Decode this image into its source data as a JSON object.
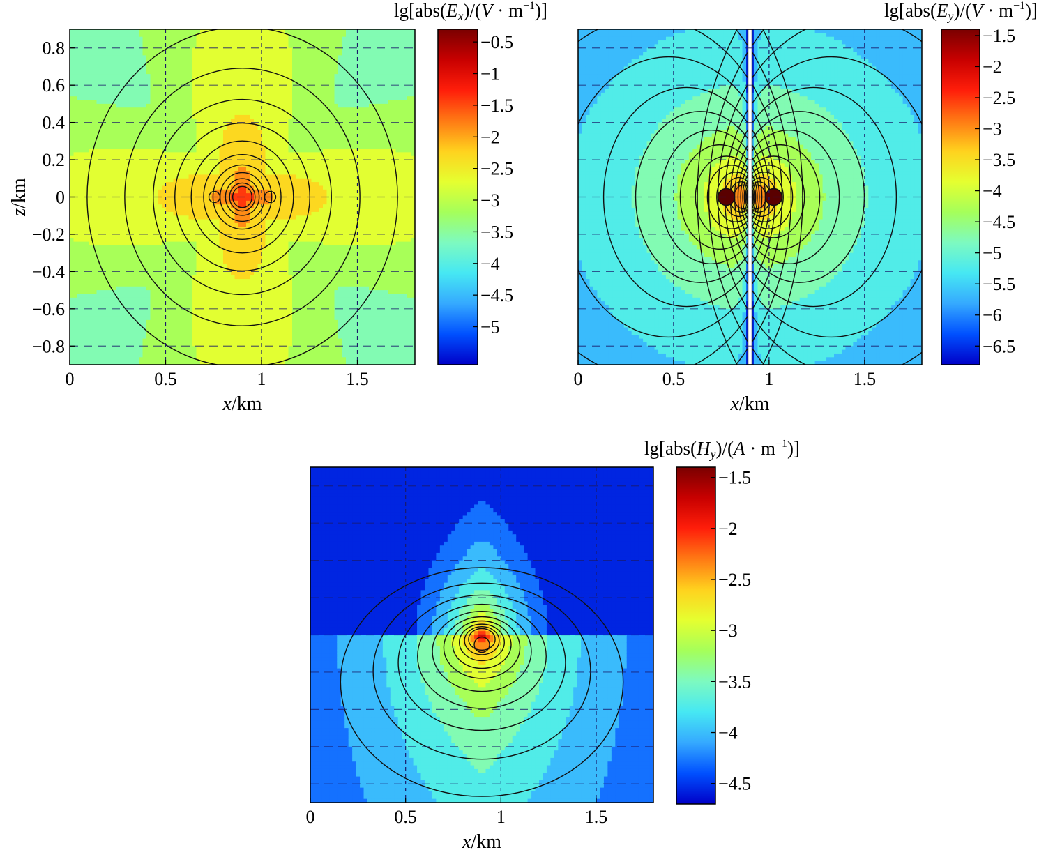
{
  "colormap": [
    "#0000c8",
    "#0050ff",
    "#35a9ff",
    "#46e8f3",
    "#7dfac0",
    "#a5ff5a",
    "#e5ff30",
    "#ffd21e",
    "#ff7a14",
    "#ff1e0a",
    "#c80000",
    "#7a0000"
  ],
  "chart_data": [
    {
      "id": "ex",
      "type": "heatmap",
      "title_prefix": "lg[abs(",
      "title_field": "E",
      "title_sub": "x",
      "title_mid": ")/(",
      "title_unit": "V",
      "title_dot": " · m",
      "title_sup": "−1",
      "title_suffix": ")]",
      "xlabel_var": "x",
      "xlabel_unit": "/km",
      "ylabel_var": "z",
      "ylabel_unit": "/km",
      "xlim": [
        0,
        1.8
      ],
      "ylim": [
        -0.9,
        0.9
      ],
      "xticks": [
        0,
        0.5,
        1,
        1.5
      ],
      "xtick_labels": [
        "0",
        "0.5",
        "1",
        "1.5"
      ],
      "yticks": [
        0.8,
        0.6,
        0.4,
        0.2,
        0,
        -0.2,
        -0.4,
        -0.6,
        -0.8
      ],
      "ytick_labels": [
        "0.8",
        "0.6",
        "0.4",
        "0.2",
        "0",
        "-0.2",
        "-0.4",
        "-0.6",
        "-0.8"
      ],
      "colorbar_range": [
        -5.6,
        -0.3
      ],
      "colorbar_ticks": [
        -0.5,
        -1,
        -1.5,
        -2,
        -2.5,
        -3,
        -3.5,
        -4,
        -4.5,
        -5
      ],
      "colorbar_tick_labels": [
        "-0.5",
        "-1",
        "-1.5",
        "-2",
        "-2.5",
        "-3",
        "-3.5",
        "-4",
        "-4.5",
        "-5"
      ],
      "source_x": 0.9,
      "source_z": 0
    },
    {
      "id": "ey",
      "type": "heatmap",
      "title_prefix": "lg[abs(",
      "title_field": "E",
      "title_sub": "y",
      "title_mid": ")/(",
      "title_unit": "V",
      "title_dot": " · m",
      "title_sup": "−1",
      "title_suffix": ")]",
      "xlabel_var": "x",
      "xlabel_unit": "/km",
      "xlim": [
        0,
        1.8
      ],
      "ylim": [
        -0.9,
        0.9
      ],
      "xticks": [
        0,
        0.5,
        1,
        1.5
      ],
      "xtick_labels": [
        "0",
        "0.5",
        "1",
        "1.5"
      ],
      "colorbar_range": [
        -6.8,
        -1.4
      ],
      "colorbar_ticks": [
        -1.5,
        -2,
        -2.5,
        -3,
        -3.5,
        -4,
        -4.5,
        -5,
        -5.5,
        -6,
        -6.5
      ],
      "colorbar_tick_labels": [
        "-1.5",
        "-2",
        "-2.5",
        "-3",
        "-3.5",
        "-4",
        "-4.5",
        "-5",
        "-5.5",
        "-6",
        "-6.5"
      ],
      "source_x": 0.9,
      "source_z": 0
    },
    {
      "id": "hy",
      "type": "heatmap",
      "title_prefix": "lg[abs(",
      "title_field": "H",
      "title_sub": "y",
      "title_mid": ")/(",
      "title_unit": "A",
      "title_dot": " · m",
      "title_sup": "−1",
      "title_suffix": ")]",
      "xlabel_var": "x",
      "xlabel_unit": "/km",
      "xlim": [
        0,
        1.8
      ],
      "ylim": [
        -0.9,
        0.9
      ],
      "xticks": [
        0,
        0.5,
        1,
        1.5
      ],
      "xtick_labels": [
        "0",
        "0.5",
        "1",
        "1.5"
      ],
      "colorbar_range": [
        -4.7,
        -1.4
      ],
      "colorbar_ticks": [
        -1.5,
        -2,
        -2.5,
        -3,
        -3.5,
        -4,
        -4.5
      ],
      "colorbar_tick_labels": [
        "-1.5",
        "-2",
        "-2.5",
        "-3",
        "-3.5",
        "-4",
        "-4.5"
      ],
      "source_x": 0.9,
      "source_z": 0
    }
  ]
}
